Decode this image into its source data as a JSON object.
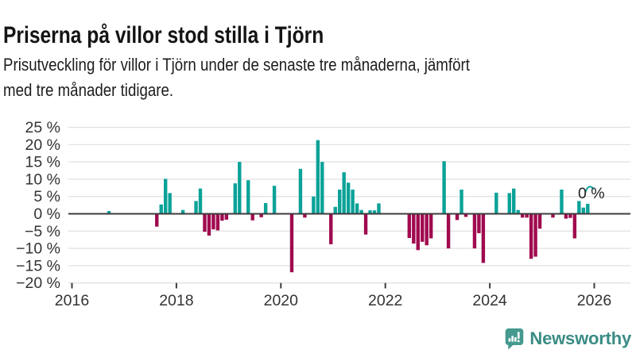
{
  "page": {
    "title": "Priserna på villor stod stilla i Tjörn",
    "subtitle_lines": [
      "Prisutveckling för villor i Tjörn under de senaste tre månaderna, jämfört",
      "med tre månader tidigare."
    ]
  },
  "annotation": {
    "label": "0 %"
  },
  "logo": {
    "name": "Newsworthy",
    "icon": "newsworthy-chart-bubble-icon"
  },
  "colors": {
    "positive": "#0ba298",
    "negative": "#a00a4f",
    "grid": "#e3e3e3",
    "zero_line": "#3c3c3c",
    "axis_text": "#333333",
    "annotation_text": "#222222",
    "logo_bubble": "#45998f",
    "logo_text": "#3a8c84"
  },
  "chart_data": {
    "type": "bar",
    "title": "Priserna på villor stod stilla i Tjörn",
    "subtitle": "Prisutveckling för villor i Tjörn under de senaste tre månaderna, jämfört med tre månader tidigare.",
    "unit": "%",
    "grid": true,
    "legend": "none",
    "ylim": [
      -20,
      25
    ],
    "y_ticks": [
      25,
      20,
      15,
      10,
      5,
      0,
      -5,
      -10,
      -15,
      -20
    ],
    "y_tick_labels": [
      "25 %",
      "20 %",
      "15 %",
      "10 %",
      "5 %",
      "0 %",
      "−5 %",
      "−10 %",
      "−15 %",
      "−20 %"
    ],
    "x_ticks": [
      2016,
      2018,
      2020,
      2022,
      2024,
      2026
    ],
    "x_tick_labels": [
      "2016",
      "2018",
      "2020",
      "2022",
      "2024",
      "2026"
    ],
    "latest_value_label": "0 %",
    "points": [
      {
        "month": "2016-09",
        "value": 0.8
      },
      {
        "month": "2017-08",
        "value": -3.7
      },
      {
        "month": "2017-09",
        "value": 2.7
      },
      {
        "month": "2017-10",
        "value": 10.1
      },
      {
        "month": "2017-11",
        "value": 6.0
      },
      {
        "month": "2018-02",
        "value": 1.1
      },
      {
        "month": "2018-05",
        "value": 3.7
      },
      {
        "month": "2018-06",
        "value": 7.3
      },
      {
        "month": "2018-07",
        "value": -5.2
      },
      {
        "month": "2018-08",
        "value": -6.3
      },
      {
        "month": "2018-09",
        "value": -4.5
      },
      {
        "month": "2018-10",
        "value": -4.8
      },
      {
        "month": "2018-11",
        "value": -2.0
      },
      {
        "month": "2018-12",
        "value": -1.7
      },
      {
        "month": "2019-02",
        "value": 8.8
      },
      {
        "month": "2019-03",
        "value": 15.0
      },
      {
        "month": "2019-05",
        "value": 9.7
      },
      {
        "month": "2019-06",
        "value": -1.9
      },
      {
        "month": "2019-08",
        "value": -1.0
      },
      {
        "month": "2019-09",
        "value": 3.1
      },
      {
        "month": "2019-11",
        "value": 8.1
      },
      {
        "month": "2020-03",
        "value": -16.9
      },
      {
        "month": "2020-05",
        "value": 13.0
      },
      {
        "month": "2020-06",
        "value": -1.1
      },
      {
        "month": "2020-08",
        "value": 5.0
      },
      {
        "month": "2020-09",
        "value": 21.3
      },
      {
        "month": "2020-10",
        "value": 15.0
      },
      {
        "month": "2020-12",
        "value": -8.8
      },
      {
        "month": "2021-01",
        "value": 2.0
      },
      {
        "month": "2021-02",
        "value": 7.0
      },
      {
        "month": "2021-03",
        "value": 12.0
      },
      {
        "month": "2021-04",
        "value": 9.0
      },
      {
        "month": "2021-05",
        "value": 7.0
      },
      {
        "month": "2021-06",
        "value": 3.0
      },
      {
        "month": "2021-07",
        "value": 1.1
      },
      {
        "month": "2021-08",
        "value": -6.0
      },
      {
        "month": "2021-09",
        "value": 1.0
      },
      {
        "month": "2021-10",
        "value": 1.0
      },
      {
        "month": "2021-11",
        "value": 3.0
      },
      {
        "month": "2022-06",
        "value": -7.0
      },
      {
        "month": "2022-07",
        "value": -8.6
      },
      {
        "month": "2022-08",
        "value": -10.5
      },
      {
        "month": "2022-09",
        "value": -8.1
      },
      {
        "month": "2022-10",
        "value": -9.1
      },
      {
        "month": "2022-11",
        "value": -7.1
      },
      {
        "month": "2023-02",
        "value": 15.2
      },
      {
        "month": "2023-03",
        "value": -10.0
      },
      {
        "month": "2023-05",
        "value": -1.8
      },
      {
        "month": "2023-06",
        "value": 7.0
      },
      {
        "month": "2023-07",
        "value": -0.9
      },
      {
        "month": "2023-09",
        "value": -10.0
      },
      {
        "month": "2023-10",
        "value": -5.6
      },
      {
        "month": "2023-11",
        "value": -14.2
      },
      {
        "month": "2024-02",
        "value": 6.1
      },
      {
        "month": "2024-05",
        "value": 6.0
      },
      {
        "month": "2024-06",
        "value": 7.3
      },
      {
        "month": "2024-07",
        "value": 1.1
      },
      {
        "month": "2024-08",
        "value": -1.1
      },
      {
        "month": "2024-09",
        "value": -1.1
      },
      {
        "month": "2024-10",
        "value": -13.0
      },
      {
        "month": "2024-11",
        "value": -12.4
      },
      {
        "month": "2024-12",
        "value": -4.3
      },
      {
        "month": "2025-03",
        "value": -1.1
      },
      {
        "month": "2025-05",
        "value": 7.0
      },
      {
        "month": "2025-06",
        "value": -1.4
      },
      {
        "month": "2025-07",
        "value": -1.2
      },
      {
        "month": "2025-08",
        "value": -7.1
      },
      {
        "month": "2025-09",
        "value": 3.7
      },
      {
        "month": "2025-10",
        "value": 1.8
      },
      {
        "month": "2025-11",
        "value": 2.9
      },
      {
        "month": "2025-12",
        "value": 0.0
      }
    ]
  }
}
